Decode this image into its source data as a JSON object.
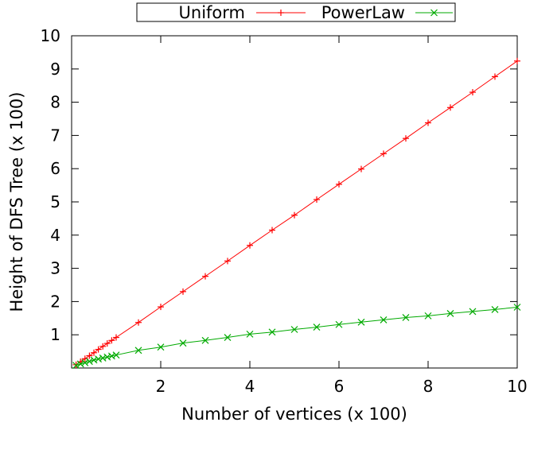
{
  "chart_data": {
    "type": "line",
    "title": "",
    "xlabel": "Number of vertices (x 100)",
    "ylabel": "Height of DFS Tree (x 100)",
    "xlim": [
      0,
      10
    ],
    "ylim": [
      0,
      10
    ],
    "xticks": [
      2,
      4,
      6,
      8,
      10
    ],
    "yticks": [
      1,
      2,
      3,
      4,
      5,
      6,
      7,
      8,
      9,
      10
    ],
    "grid": false,
    "legend_position": "top-center",
    "series": [
      {
        "name": "Uniform",
        "color": "#ff0000",
        "marker": "plus",
        "x": [
          0.1,
          0.2,
          0.3,
          0.4,
          0.5,
          0.6,
          0.7,
          0.8,
          0.9,
          1.0,
          1.5,
          2.0,
          2.5,
          3.0,
          3.5,
          4.0,
          4.5,
          5.0,
          5.5,
          6.0,
          6.5,
          7.0,
          7.5,
          8.0,
          8.5,
          9.0,
          9.5,
          10.0
        ],
        "y": [
          0.1,
          0.19,
          0.28,
          0.37,
          0.46,
          0.56,
          0.65,
          0.74,
          0.83,
          0.92,
          1.37,
          1.84,
          2.3,
          2.76,
          3.22,
          3.69,
          4.15,
          4.6,
          5.07,
          5.53,
          5.99,
          6.45,
          6.91,
          7.38,
          7.84,
          8.3,
          8.77,
          9.24
        ]
      },
      {
        "name": "PowerLaw",
        "color": "#00aa00",
        "marker": "cross",
        "x": [
          0.1,
          0.2,
          0.3,
          0.4,
          0.5,
          0.6,
          0.7,
          0.8,
          0.9,
          1.0,
          1.5,
          2.0,
          2.5,
          3.0,
          3.5,
          4.0,
          4.5,
          5.0,
          5.5,
          6.0,
          6.5,
          7.0,
          7.5,
          8.0,
          8.5,
          9.0,
          9.5,
          10.0
        ],
        "y": [
          0.08,
          0.12,
          0.16,
          0.2,
          0.24,
          0.27,
          0.3,
          0.33,
          0.36,
          0.39,
          0.53,
          0.63,
          0.75,
          0.83,
          0.92,
          1.02,
          1.08,
          1.16,
          1.23,
          1.31,
          1.38,
          1.45,
          1.52,
          1.57,
          1.64,
          1.7,
          1.76,
          1.83
        ]
      }
    ]
  }
}
